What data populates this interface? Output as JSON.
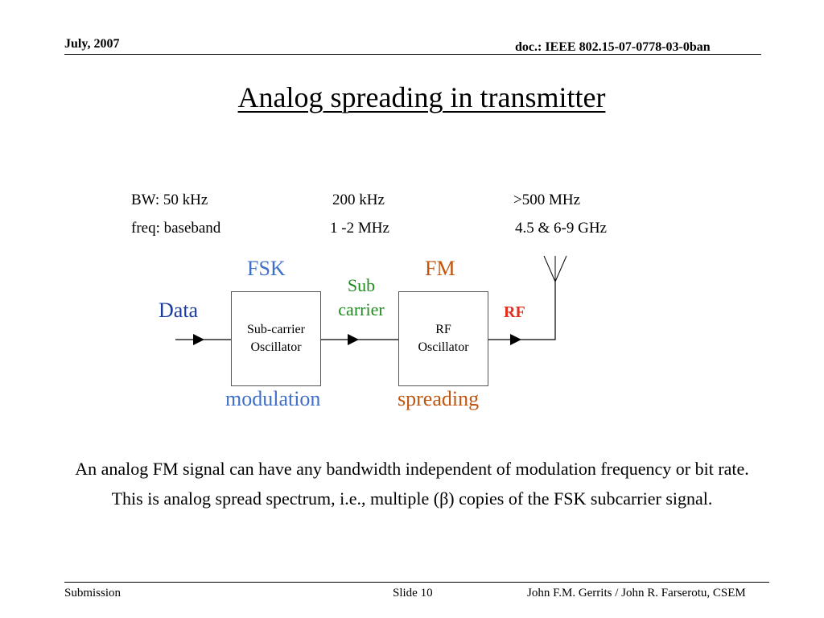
{
  "header": {
    "date": "July, 2007",
    "doc_id": "doc.: IEEE 802.15-07-0778-03-0ban"
  },
  "title": "Analog spreading in transmitter",
  "specs": {
    "bw": [
      "BW: 50 kHz",
      "200 kHz",
      ">500 MHz"
    ],
    "freq": [
      "freq: baseband",
      "1 -2 MHz",
      "4.5 & 6-9 GHz"
    ]
  },
  "diagram": {
    "input_label": "Data",
    "fsk_label": "FSK",
    "fm_label": "FM",
    "subcarrier_label_line1": "Sub",
    "subcarrier_label_line2": "carrier",
    "rf_output_label": "RF",
    "block1_line1": "Sub-carrier",
    "block1_line2": "Oscillator",
    "block2_line1": "RF",
    "block2_line2": "Oscillator",
    "modulation_label": "modulation",
    "spreading_label": "spreading",
    "colors": {
      "fsk_modulation": "#3f6fc6",
      "fm_spreading": "#c0560f",
      "subcarrier": "#1f8a1f",
      "data": "#1a3c9c",
      "rf": "#e0301e"
    }
  },
  "caption": {
    "line1": "An analog FM signal can have any bandwidth independent of modulation frequency or bit rate.",
    "line2": "This is analog spread spectrum, i.e., multiple (β) copies of the FSK subcarrier signal."
  },
  "footer": {
    "left": "Submission",
    "center": "Slide 10",
    "right": "John F.M. Gerrits / John R. Farserotu, CSEM"
  }
}
